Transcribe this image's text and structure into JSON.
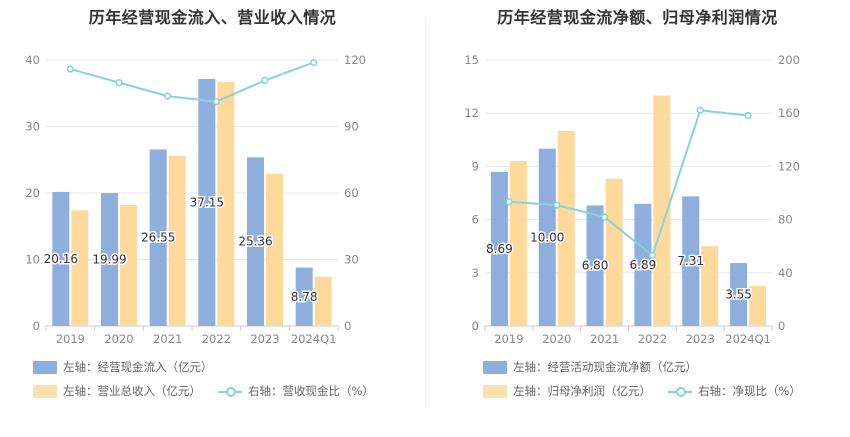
{
  "colors": {
    "bar_primary": "#8eaedd",
    "bar_secondary": "#fdd99b",
    "line": "#88d3db",
    "grid": "#e8e8e8",
    "axis_text": "#888888"
  },
  "charts": [
    {
      "title": "历年经营现金流入、营业收入情况",
      "legend": [
        {
          "label": "左轴：经营现金流入（亿元）",
          "icon": "bar-swatch-blue"
        },
        {
          "label": "左轴：营业总收入（亿元）",
          "icon": "bar-swatch-yellow"
        },
        {
          "label": "右轴：营收现金比（%）",
          "icon": "line-swatch-cyan"
        }
      ]
    },
    {
      "title": "历年经营现金流净额、归母净利润情况",
      "legend": [
        {
          "label": "左轴：经营活动现金流净额（亿元）",
          "icon": "bar-swatch-blue"
        },
        {
          "label": "左轴：归母净利润（亿元）",
          "icon": "bar-swatch-yellow"
        },
        {
          "label": "右轴：净现比（%）",
          "icon": "line-swatch-cyan"
        }
      ]
    }
  ],
  "chart_data": [
    {
      "type": "bar",
      "title": "历年经营现金流入、营业收入情况",
      "categories": [
        "2019",
        "2020",
        "2021",
        "2022",
        "2023",
        "2024Q1"
      ],
      "y_left": {
        "min": 0,
        "max": 40,
        "ticks": [
          0,
          10,
          20,
          30,
          40
        ]
      },
      "y_right": {
        "min": 0,
        "max": 120,
        "ticks": [
          0,
          30,
          60,
          90,
          120
        ]
      },
      "grid": true,
      "legend_position": "bottom-left",
      "series": [
        {
          "name": "左轴：经营现金流入（亿元）",
          "type": "bar",
          "axis": "left",
          "values": [
            20.16,
            19.99,
            26.55,
            37.15,
            25.36,
            8.78
          ],
          "labels": [
            "20.16",
            "19.99",
            "26.55",
            "37.15",
            "25.36",
            "8.78"
          ]
        },
        {
          "name": "左轴：营业总收入（亿元）",
          "type": "bar",
          "axis": "left",
          "values": [
            17.4,
            18.2,
            25.6,
            36.7,
            22.9,
            7.4
          ]
        },
        {
          "name": "右轴：营收现金比（%）",
          "type": "line",
          "axis": "right",
          "values": [
            115.9,
            109.8,
            103.7,
            101.2,
            110.8,
            118.9
          ]
        }
      ]
    },
    {
      "type": "bar",
      "title": "历年经营现金流净额、归母净利润情况",
      "categories": [
        "2019",
        "2020",
        "2021",
        "2022",
        "2023",
        "2024Q1"
      ],
      "y_left": {
        "min": 0,
        "max": 15,
        "ticks": [
          0,
          3,
          6,
          9,
          12,
          15
        ]
      },
      "y_right": {
        "min": 0,
        "max": 200,
        "ticks": [
          0,
          40,
          80,
          120,
          160,
          200
        ]
      },
      "grid": true,
      "legend_position": "bottom-left",
      "series": [
        {
          "name": "左轴：经营活动现金流净额（亿元）",
          "type": "bar",
          "axis": "left",
          "values": [
            8.69,
            10.0,
            6.8,
            6.89,
            7.31,
            3.55
          ],
          "labels": [
            "8.69",
            "10.00",
            "6.80",
            "6.89",
            "7.31",
            "3.55"
          ]
        },
        {
          "name": "左轴：归母净利润（亿元）",
          "type": "bar",
          "axis": "left",
          "values": [
            9.3,
            11.0,
            8.3,
            13.0,
            4.5,
            2.25
          ]
        },
        {
          "name": "右轴：净现比（%）",
          "type": "line",
          "axis": "right",
          "values": [
            93.4,
            90.9,
            81.9,
            53.0,
            162.2,
            158.3
          ]
        }
      ]
    }
  ]
}
